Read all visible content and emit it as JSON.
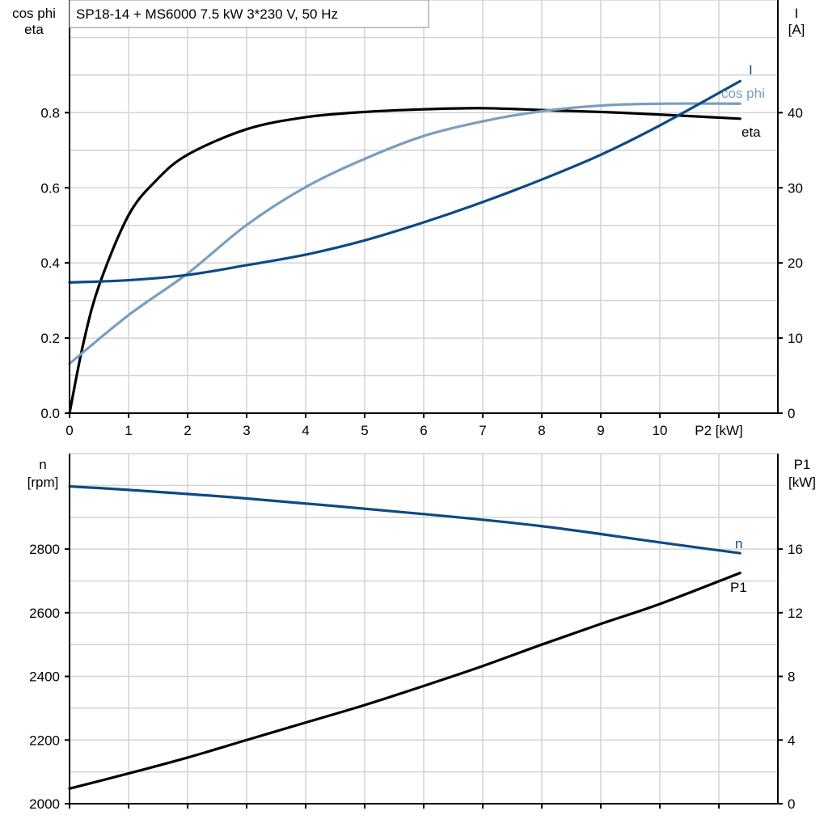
{
  "title": "SP18-14 + MS6000   7.5 kW   3*230 V, 50 Hz",
  "colors": {
    "eta": "#000000",
    "cos_phi": "#7a9ebf",
    "I": "#0d4a84",
    "n": "#0d4a84",
    "P1": "#000000",
    "grid": "#d3d3d3"
  },
  "chart_data": [
    {
      "type": "line",
      "xlabel": "P2 [kW]",
      "ylabel_left": [
        "cos phi",
        "eta"
      ],
      "ylabel_right": [
        "I",
        "[A]"
      ],
      "xlim": [
        0,
        12
      ],
      "ylim_left": [
        0,
        1.1
      ],
      "ylim_right": [
        0,
        55
      ],
      "x_ticks": [
        "0",
        "1",
        "2",
        "3",
        "4",
        "5",
        "6",
        "7",
        "8",
        "9",
        "10"
      ],
      "y_ticks_left": [
        "0.0",
        "0.2",
        "0.4",
        "0.6",
        "0.8"
      ],
      "y_ticks_right": [
        "0",
        "10",
        "20",
        "30",
        "40"
      ],
      "grid": true,
      "series": [
        {
          "name": "eta",
          "axis": "left",
          "x": [
            0,
            0.23,
            0.5,
            1,
            1.47,
            2,
            3,
            4,
            5,
            6,
            7,
            8,
            9,
            10,
            11.36
          ],
          "y": [
            0,
            0.183,
            0.34,
            0.527,
            0.62,
            0.688,
            0.756,
            0.788,
            0.802,
            0.809,
            0.812,
            0.807,
            0.802,
            0.795,
            0.784
          ]
        },
        {
          "name": "cos phi",
          "axis": "left",
          "x": [
            0,
            1,
            2,
            3,
            4,
            5,
            6,
            7,
            8,
            9,
            10,
            11.36
          ],
          "y": [
            0.132,
            0.261,
            0.372,
            0.501,
            0.602,
            0.677,
            0.738,
            0.777,
            0.804,
            0.819,
            0.824,
            0.824
          ]
        },
        {
          "name": "I",
          "axis": "right",
          "x": [
            0,
            1,
            2,
            3,
            4,
            5,
            6,
            7,
            8,
            9,
            10,
            11.36
          ],
          "y": [
            17.4,
            17.7,
            18.4,
            19.7,
            21.1,
            23.0,
            25.4,
            28.1,
            31.1,
            34.4,
            38.3,
            44.2
          ]
        }
      ]
    },
    {
      "type": "line",
      "ylabel_left": [
        "n",
        "[rpm]"
      ],
      "ylabel_right": [
        "P1",
        "[kW]"
      ],
      "xlim": [
        0,
        12
      ],
      "ylim_left": [
        2000,
        3100
      ],
      "ylim_right": [
        0,
        22
      ],
      "y_ticks_left": [
        "2000",
        "2200",
        "2400",
        "2600",
        "2800"
      ],
      "y_ticks_right": [
        "0",
        "4",
        "8",
        "12",
        "16"
      ],
      "grid": true,
      "series": [
        {
          "name": "n",
          "axis": "left",
          "x": [
            0,
            1,
            3,
            6,
            8,
            10,
            11.36
          ],
          "y": [
            2997,
            2986,
            2959,
            2910,
            2872,
            2821,
            2787
          ]
        },
        {
          "name": "P1",
          "axis": "right",
          "x": [
            0,
            1,
            2,
            3,
            4,
            5,
            6,
            7,
            8,
            9,
            10,
            11.36
          ],
          "y": [
            0.95,
            1.9,
            2.9,
            4.0,
            5.1,
            6.2,
            7.4,
            8.65,
            10.0,
            11.3,
            12.55,
            14.5
          ]
        }
      ]
    }
  ]
}
